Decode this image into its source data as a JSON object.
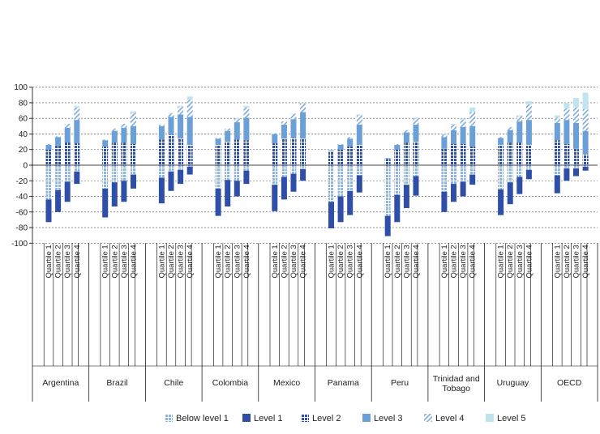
{
  "chart_data": {
    "type": "bar",
    "stacked": "diverging",
    "ylim": [
      -100,
      100
    ],
    "yticks": [
      -100,
      -80,
      -60,
      -40,
      -20,
      0,
      20,
      40,
      60,
      80,
      100
    ],
    "grid": true,
    "legend_position": "bottom",
    "quartile_labels": [
      "Quartile 1",
      "Quartile 2",
      "Quartile 3",
      "Quartile 4"
    ],
    "legend": [
      "Below level 1",
      "Level 1",
      "Level 2",
      "Level 3",
      "Level 4",
      "Level 5"
    ],
    "colors": {
      "below1": "#9bbfe6",
      "level1": "#2f4ea8",
      "level2": "#2f4ea8",
      "level3": "#6b9fd8",
      "level4": "#8fb4e0",
      "level5": "#bde4ef"
    },
    "countries": [
      {
        "name": "Argentina",
        "bars": [
          {
            "b1": 44,
            "l1": 29,
            "l2": 20,
            "l3": 6,
            "l4": 1,
            "l5": 0
          },
          {
            "b1": 32,
            "l1": 28,
            "l2": 25,
            "l3": 11,
            "l4": 1,
            "l5": 0
          },
          {
            "b1": 21,
            "l1": 26,
            "l2": 29,
            "l3": 19,
            "l4": 5,
            "l5": 0
          },
          {
            "b1": 8,
            "l1": 16,
            "l2": 28,
            "l3": 30,
            "l4": 16,
            "l5": 2
          }
        ]
      },
      {
        "name": "Brazil",
        "bars": [
          {
            "b1": 30,
            "l1": 37,
            "l2": 24,
            "l3": 8,
            "l4": 1,
            "l5": 0
          },
          {
            "b1": 22,
            "l1": 31,
            "l2": 29,
            "l3": 15,
            "l4": 3,
            "l5": 0
          },
          {
            "b1": 20,
            "l1": 27,
            "l2": 29,
            "l3": 19,
            "l4": 5,
            "l5": 0
          },
          {
            "b1": 12,
            "l1": 18,
            "l2": 27,
            "l3": 23,
            "l4": 17,
            "l5": 2
          }
        ]
      },
      {
        "name": "Chile",
        "bars": [
          {
            "b1": 16,
            "l1": 33,
            "l2": 33,
            "l3": 17,
            "l4": 2,
            "l5": 0
          },
          {
            "b1": 8,
            "l1": 25,
            "l2": 39,
            "l3": 23,
            "l4": 4,
            "l5": 1
          },
          {
            "b1": 6,
            "l1": 18,
            "l2": 34,
            "l3": 31,
            "l4": 10,
            "l5": 1
          },
          {
            "b1": 2,
            "l1": 10,
            "l2": 26,
            "l3": 36,
            "l4": 22,
            "l5": 4
          }
        ]
      },
      {
        "name": "Colombia",
        "bars": [
          {
            "b1": 30,
            "l1": 35,
            "l2": 26,
            "l3": 8,
            "l4": 1,
            "l5": 0
          },
          {
            "b1": 19,
            "l1": 34,
            "l2": 30,
            "l3": 14,
            "l4": 3,
            "l5": 0
          },
          {
            "b1": 20,
            "l1": 20,
            "l2": 33,
            "l3": 22,
            "l4": 5,
            "l5": 0
          },
          {
            "b1": 7,
            "l1": 17,
            "l2": 32,
            "l3": 29,
            "l4": 13,
            "l5": 2
          }
        ]
      },
      {
        "name": "Mexico",
        "bars": [
          {
            "b1": 25,
            "l1": 34,
            "l2": 28,
            "l3": 12,
            "l4": 1,
            "l5": 0
          },
          {
            "b1": 15,
            "l1": 29,
            "l2": 34,
            "l3": 18,
            "l4": 4,
            "l5": 0
          },
          {
            "b1": 11,
            "l1": 23,
            "l2": 35,
            "l3": 24,
            "l4": 7,
            "l5": 0
          },
          {
            "b1": 5,
            "l1": 15,
            "l2": 34,
            "l3": 34,
            "l4": 11,
            "l5": 1
          }
        ]
      },
      {
        "name": "Panama",
        "bars": [
          {
            "b1": 47,
            "l1": 34,
            "l2": 18,
            "l3": 1,
            "l4": 0,
            "l5": 0
          },
          {
            "b1": 40,
            "l1": 33,
            "l2": 20,
            "l3": 6,
            "l4": 1,
            "l5": 0
          },
          {
            "b1": 33,
            "l1": 31,
            "l2": 24,
            "l3": 10,
            "l4": 2,
            "l5": 0
          },
          {
            "b1": 13,
            "l1": 22,
            "l2": 26,
            "l3": 26,
            "l4": 12,
            "l5": 1
          }
        ]
      },
      {
        "name": "Peru",
        "bars": [
          {
            "b1": 65,
            "l1": 26,
            "l2": 8,
            "l3": 1,
            "l4": 0,
            "l5": 0
          },
          {
            "b1": 38,
            "l1": 35,
            "l2": 20,
            "l3": 6,
            "l4": 1,
            "l5": 0
          },
          {
            "b1": 25,
            "l1": 30,
            "l2": 29,
            "l3": 13,
            "l4": 3,
            "l5": 0
          },
          {
            "b1": 14,
            "l1": 25,
            "l2": 30,
            "l3": 22,
            "l4": 8,
            "l5": 1
          }
        ]
      },
      {
        "name": "Trinidad and Tobago",
        "bars": [
          {
            "b1": 34,
            "l1": 26,
            "l2": 21,
            "l3": 15,
            "l4": 3,
            "l5": 1
          },
          {
            "b1": 24,
            "l1": 23,
            "l2": 27,
            "l3": 18,
            "l4": 7,
            "l5": 1
          },
          {
            "b1": 21,
            "l1": 19,
            "l2": 27,
            "l3": 22,
            "l4": 9,
            "l5": 2
          },
          {
            "b1": 12,
            "l1": 13,
            "l2": 24,
            "l3": 26,
            "l4": 18,
            "l5": 6
          }
        ]
      },
      {
        "name": "Uruguay",
        "bars": [
          {
            "b1": 31,
            "l1": 33,
            "l2": 26,
            "l3": 9,
            "l4": 1,
            "l5": 0
          },
          {
            "b1": 22,
            "l1": 28,
            "l2": 29,
            "l3": 16,
            "l4": 4,
            "l5": 0
          },
          {
            "b1": 15,
            "l1": 22,
            "l2": 29,
            "l3": 27,
            "l4": 7,
            "l5": 1
          },
          {
            "b1": 6,
            "l1": 12,
            "l2": 26,
            "l3": 32,
            "l4": 20,
            "l5": 4
          }
        ]
      },
      {
        "name": "OECD",
        "bars": [
          {
            "b1": 13,
            "l1": 23,
            "l2": 32,
            "l3": 22,
            "l4": 7,
            "l5": 3
          },
          {
            "b1": 4,
            "l1": 16,
            "l2": 27,
            "l3": 31,
            "l4": 15,
            "l5": 7
          },
          {
            "b1": 4,
            "l1": 10,
            "l2": 21,
            "l3": 33,
            "l4": 20,
            "l5": 12
          },
          {
            "b1": 2,
            "l1": 5,
            "l2": 14,
            "l3": 30,
            "l4": 28,
            "l5": 21
          }
        ]
      }
    ]
  }
}
